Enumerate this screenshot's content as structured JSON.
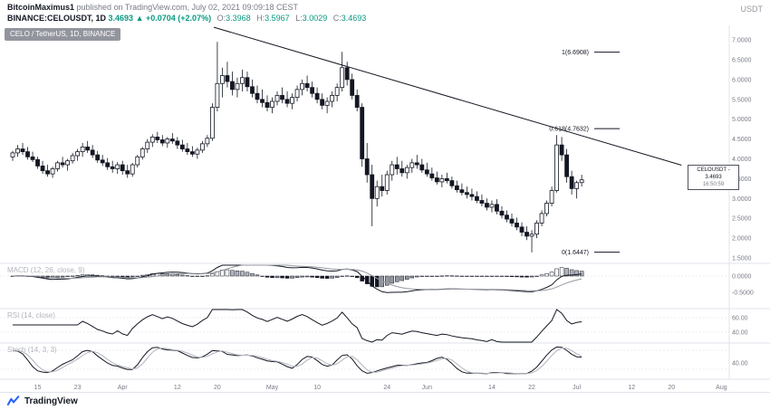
{
  "colors": {
    "up": "#ffffff",
    "down": "#131722",
    "outline": "#131722",
    "accent_green": "#089981",
    "axis_text": "#787b86",
    "pane_label": "#b2b5be",
    "separator": "#e0e3eb",
    "brand_blue": "#2962ff"
  },
  "header": {
    "author": "BitcoinMaximus1",
    "published": " published on TradingView.com, July 02, 2021 09:09:18 CEST",
    "symbol": "BINANCE:CELOUSDT, 1D",
    "last_price": "3.4693",
    "arrow": "▲",
    "change": "+0.0704 (+2.07%)",
    "ohlc": [
      {
        "label": "O:",
        "value": "3.3968"
      },
      {
        "label": "H:",
        "value": "3.5967"
      },
      {
        "label": "L:",
        "value": "3.0029"
      },
      {
        "label": "C:",
        "value": "3.4693"
      }
    ],
    "quote_currency": "USDT"
  },
  "legend": {
    "text": "CELO / TetherUS, 1D, BINANCE"
  },
  "price_label": {
    "line1": "CELOUSDT - 3.4693",
    "countdown": "16:50:59"
  },
  "panes": {
    "macd": {
      "label": "MACD (12, 26, close, 9)",
      "ticks": [
        {
          "v": 0,
          "label": "0.0000"
        },
        {
          "v": -0.5,
          "label": "-0.5000"
        }
      ]
    },
    "rsi": {
      "label": "RSI (14, close)",
      "ticks": [
        {
          "v": 60,
          "label": "60.00"
        },
        {
          "v": 40,
          "label": "40.00"
        }
      ]
    },
    "stoch": {
      "label": "Stoch (14, 3, 3)",
      "ticks": [
        {
          "v": 40,
          "label": "40.00"
        }
      ]
    }
  },
  "price_axis": {
    "ticks": [
      {
        "v": 7.0,
        "label": "7.0000"
      },
      {
        "v": 6.5,
        "label": "6.5000"
      },
      {
        "v": 6.0,
        "label": "6.0000"
      },
      {
        "v": 5.5,
        "label": "5.5000"
      },
      {
        "v": 5.0,
        "label": "5.0000"
      },
      {
        "v": 4.5,
        "label": "4.5000"
      },
      {
        "v": 4.0,
        "label": "4.0000"
      },
      {
        "v": 3.5,
        "label": "3.5000"
      },
      {
        "v": 3.0,
        "label": "3.0000"
      },
      {
        "v": 2.5,
        "label": "2.5000"
      },
      {
        "v": 2.0,
        "label": "2.0000"
      },
      {
        "v": 1.5,
        "label": "1.5000"
      }
    ]
  },
  "time_axis": {
    "ticks": [
      {
        "i": 5,
        "label": "15"
      },
      {
        "i": 13,
        "label": "23"
      },
      {
        "i": 22,
        "label": "Apr"
      },
      {
        "i": 33,
        "label": "12"
      },
      {
        "i": 41,
        "label": "20"
      },
      {
        "i": 52,
        "label": "May"
      },
      {
        "i": 61,
        "label": "10"
      },
      {
        "i": 75,
        "label": "24"
      },
      {
        "i": 83,
        "label": "Jun"
      },
      {
        "i": 96,
        "label": "14"
      },
      {
        "i": 104,
        "label": "22"
      },
      {
        "i": 113,
        "label": "Jul"
      },
      {
        "i": 124,
        "label": "12"
      },
      {
        "i": 132,
        "label": "20"
      },
      {
        "i": 142,
        "label": "Aug"
      }
    ]
  },
  "annotations": {
    "fib": [
      {
        "label": "1(6.6908)",
        "price": 6.6908
      },
      {
        "label": "0.618(4.7632)",
        "price": 4.7632
      },
      {
        "label": "0(1.6447)",
        "price": 1.6447
      }
    ],
    "trendline": {
      "from": {
        "i": 40.3,
        "p": 7.32
      },
      "to": {
        "i": 134,
        "p": 3.84
      }
    }
  },
  "footer": {
    "brand": "TradingView"
  },
  "chart_data": {
    "type": "candlestick",
    "symbol": "BINANCE:CELOUSDT",
    "timeframe": "1D",
    "price_range": [
      1.36,
      7.37
    ],
    "indicators": {
      "macd": [
        12,
        26,
        9
      ],
      "rsi": [
        14
      ],
      "stoch": [
        14,
        3,
        3
      ]
    },
    "candles": [
      [
        4.05,
        4.2,
        3.95,
        4.15
      ],
      [
        4.15,
        4.35,
        4.05,
        4.25
      ],
      [
        4.25,
        4.4,
        4.1,
        4.18
      ],
      [
        4.18,
        4.3,
        3.98,
        4.05
      ],
      [
        4.05,
        4.18,
        3.92,
        3.98
      ],
      [
        3.98,
        4.05,
        3.75,
        3.82
      ],
      [
        3.82,
        3.95,
        3.62,
        3.7
      ],
      [
        3.7,
        3.85,
        3.55,
        3.62
      ],
      [
        3.62,
        3.8,
        3.52,
        3.75
      ],
      [
        3.75,
        3.95,
        3.68,
        3.9
      ],
      [
        3.9,
        4.05,
        3.78,
        3.85
      ],
      [
        3.85,
        4.0,
        3.7,
        3.95
      ],
      [
        3.95,
        4.15,
        3.88,
        4.08
      ],
      [
        4.08,
        4.25,
        3.95,
        4.18
      ],
      [
        4.18,
        4.4,
        4.05,
        4.3
      ],
      [
        4.3,
        4.45,
        4.15,
        4.22
      ],
      [
        4.22,
        4.35,
        4.02,
        4.1
      ],
      [
        4.1,
        4.2,
        3.9,
        3.97
      ],
      [
        3.97,
        4.1,
        3.82,
        3.9
      ],
      [
        3.9,
        4.02,
        3.72,
        3.8
      ],
      [
        3.8,
        3.95,
        3.65,
        3.75
      ],
      [
        3.75,
        3.92,
        3.62,
        3.85
      ],
      [
        3.85,
        3.95,
        3.6,
        3.7
      ],
      [
        3.7,
        3.85,
        3.52,
        3.62
      ],
      [
        3.62,
        3.9,
        3.55,
        3.85
      ],
      [
        3.85,
        4.1,
        3.78,
        4.05
      ],
      [
        4.05,
        4.3,
        3.98,
        4.25
      ],
      [
        4.25,
        4.5,
        4.15,
        4.42
      ],
      [
        4.42,
        4.62,
        4.3,
        4.55
      ],
      [
        4.55,
        4.68,
        4.4,
        4.48
      ],
      [
        4.48,
        4.6,
        4.32,
        4.4
      ],
      [
        4.4,
        4.55,
        4.28,
        4.5
      ],
      [
        4.5,
        4.65,
        4.38,
        4.45
      ],
      [
        4.45,
        4.55,
        4.25,
        4.35
      ],
      [
        4.35,
        4.48,
        4.18,
        4.25
      ],
      [
        4.25,
        4.4,
        4.1,
        4.18
      ],
      [
        4.18,
        4.32,
        4.05,
        4.12
      ],
      [
        4.12,
        4.28,
        4.0,
        4.22
      ],
      [
        4.22,
        4.45,
        4.15,
        4.38
      ],
      [
        4.38,
        4.6,
        4.3,
        4.52
      ],
      [
        4.52,
        5.4,
        4.45,
        5.3
      ],
      [
        5.3,
        6.95,
        5.2,
        5.9
      ],
      [
        5.9,
        6.3,
        5.55,
        6.1
      ],
      [
        6.1,
        6.45,
        5.8,
        5.95
      ],
      [
        5.95,
        6.2,
        5.6,
        5.75
      ],
      [
        5.75,
        6.05,
        5.55,
        5.9
      ],
      [
        5.9,
        6.25,
        5.7,
        6.05
      ],
      [
        6.05,
        6.2,
        5.7,
        5.82
      ],
      [
        5.82,
        6.0,
        5.55,
        5.65
      ],
      [
        5.65,
        5.85,
        5.4,
        5.5
      ],
      [
        5.5,
        5.75,
        5.3,
        5.42
      ],
      [
        5.42,
        5.6,
        5.2,
        5.3
      ],
      [
        5.3,
        5.55,
        5.15,
        5.45
      ],
      [
        5.45,
        5.7,
        5.35,
        5.6
      ],
      [
        5.6,
        5.8,
        5.4,
        5.5
      ],
      [
        5.5,
        5.7,
        5.3,
        5.4
      ],
      [
        5.4,
        5.65,
        5.25,
        5.55
      ],
      [
        5.55,
        5.85,
        5.45,
        5.75
      ],
      [
        5.75,
        6.0,
        5.6,
        5.9
      ],
      [
        5.9,
        6.1,
        5.7,
        5.8
      ],
      [
        5.8,
        5.95,
        5.55,
        5.65
      ],
      [
        5.65,
        5.8,
        5.4,
        5.5
      ],
      [
        5.5,
        5.65,
        5.25,
        5.35
      ],
      [
        5.35,
        5.55,
        5.15,
        5.45
      ],
      [
        5.45,
        5.7,
        5.3,
        5.6
      ],
      [
        5.6,
        5.9,
        5.45,
        5.8
      ],
      [
        5.8,
        6.7,
        5.7,
        6.3
      ],
      [
        6.3,
        6.45,
        5.85,
        6.0
      ],
      [
        6.0,
        6.15,
        5.5,
        5.6
      ],
      [
        5.6,
        5.75,
        5.2,
        5.3
      ],
      [
        5.3,
        5.4,
        3.8,
        4.0
      ],
      [
        4.0,
        4.4,
        3.4,
        3.6
      ],
      [
        3.6,
        3.85,
        2.3,
        3.0
      ],
      [
        3.0,
        3.45,
        2.8,
        3.3
      ],
      [
        3.3,
        3.6,
        3.05,
        3.2
      ],
      [
        3.2,
        3.7,
        3.1,
        3.6
      ],
      [
        3.6,
        3.95,
        3.45,
        3.85
      ],
      [
        3.85,
        4.05,
        3.6,
        3.75
      ],
      [
        3.75,
        3.95,
        3.55,
        3.65
      ],
      [
        3.65,
        3.85,
        3.5,
        3.78
      ],
      [
        3.78,
        4.0,
        3.65,
        3.9
      ],
      [
        3.9,
        4.1,
        3.75,
        3.85
      ],
      [
        3.85,
        4.0,
        3.65,
        3.72
      ],
      [
        3.72,
        3.9,
        3.55,
        3.62
      ],
      [
        3.62,
        3.78,
        3.45,
        3.52
      ],
      [
        3.52,
        3.68,
        3.35,
        3.42
      ],
      [
        3.42,
        3.6,
        3.28,
        3.5
      ],
      [
        3.5,
        3.65,
        3.38,
        3.45
      ],
      [
        3.45,
        3.55,
        3.25,
        3.32
      ],
      [
        3.32,
        3.45,
        3.15,
        3.22
      ],
      [
        3.22,
        3.38,
        3.08,
        3.15
      ],
      [
        3.15,
        3.3,
        3.0,
        3.1
      ],
      [
        3.1,
        3.25,
        2.95,
        3.05
      ],
      [
        3.05,
        3.18,
        2.88,
        2.95
      ],
      [
        2.95,
        3.1,
        2.8,
        2.88
      ],
      [
        2.88,
        3.0,
        2.7,
        2.78
      ],
      [
        2.78,
        2.95,
        2.65,
        2.85
      ],
      [
        2.85,
        2.98,
        2.6,
        2.68
      ],
      [
        2.68,
        2.8,
        2.5,
        2.58
      ],
      [
        2.58,
        2.7,
        2.4,
        2.48
      ],
      [
        2.48,
        2.62,
        2.3,
        2.38
      ],
      [
        2.38,
        2.52,
        2.2,
        2.28
      ],
      [
        2.28,
        2.4,
        2.05,
        2.15
      ],
      [
        2.15,
        2.3,
        1.95,
        2.05
      ],
      [
        2.05,
        2.2,
        1.64,
        2.1
      ],
      [
        2.1,
        2.45,
        2.0,
        2.38
      ],
      [
        2.38,
        2.7,
        2.3,
        2.62
      ],
      [
        2.62,
        2.95,
        2.55,
        2.88
      ],
      [
        2.88,
        3.3,
        2.8,
        3.2
      ],
      [
        3.2,
        4.6,
        3.15,
        4.35
      ],
      [
        4.35,
        4.55,
        3.95,
        4.1
      ],
      [
        4.1,
        4.25,
        3.4,
        3.55
      ],
      [
        3.55,
        3.7,
        3.1,
        3.25
      ],
      [
        3.25,
        3.45,
        3.0,
        3.4
      ],
      [
        3.4,
        3.6,
        3.3,
        3.47
      ]
    ]
  }
}
